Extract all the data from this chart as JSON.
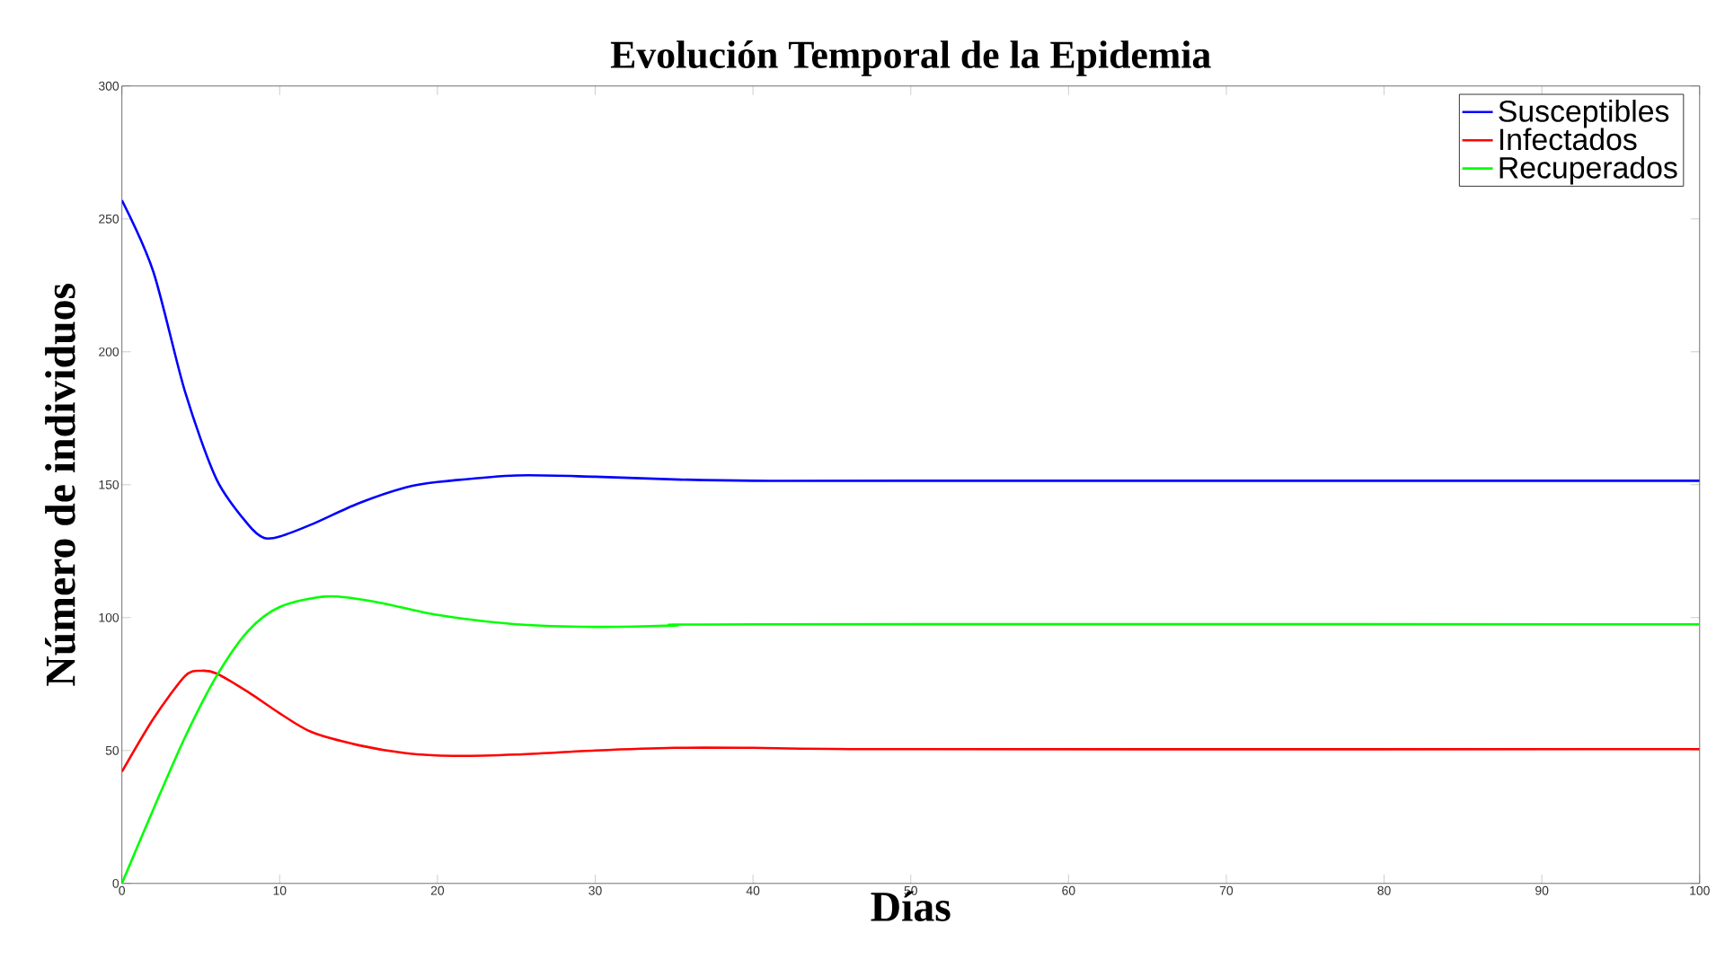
{
  "chart_data": {
    "type": "line",
    "title": "Evolución Temporal de la Epidemia",
    "xlabel": "Días",
    "ylabel": "Número de individuos",
    "xlim": [
      0,
      100
    ],
    "ylim": [
      0,
      300
    ],
    "xticks": [
      0,
      10,
      20,
      30,
      40,
      50,
      60,
      70,
      80,
      90,
      100
    ],
    "yticks": [
      0,
      50,
      100,
      150,
      200,
      250,
      300
    ],
    "legend": "top right",
    "grid": false,
    "marker": "none",
    "line_style": "solid",
    "series": [
      {
        "name": "Susceptibles",
        "color": "#0000ff",
        "x": [
          0,
          2,
          4,
          6,
          8,
          9,
          10,
          12,
          15,
          18,
          20,
          25,
          30,
          35,
          40,
          50,
          100
        ],
        "values": [
          257,
          230,
          185,
          152,
          135,
          130,
          130.5,
          135,
          143,
          149,
          151,
          153.5,
          153,
          152,
          151.5,
          151.5,
          151.5
        ]
      },
      {
        "name": "Infectados",
        "color": "#ff0000",
        "x": [
          0,
          2,
          4,
          5,
          6,
          8,
          10,
          12,
          15,
          18,
          21,
          25,
          30,
          35,
          40,
          50,
          100
        ],
        "values": [
          42,
          62,
          78,
          80,
          79,
          72,
          64,
          57,
          52,
          49,
          48,
          48.5,
          50,
          51,
          51,
          50.5,
          50.5
        ]
      },
      {
        "name": "Recuperados",
        "color": "#00ff00",
        "x": [
          0,
          2,
          4,
          6,
          8,
          10,
          13,
          16,
          20,
          25,
          30,
          35,
          40,
          100
        ],
        "values": [
          0,
          28,
          55,
          78,
          95,
          104,
          108,
          106,
          101,
          97.5,
          96.5,
          97,
          97.5,
          97.5
        ]
      }
    ]
  }
}
